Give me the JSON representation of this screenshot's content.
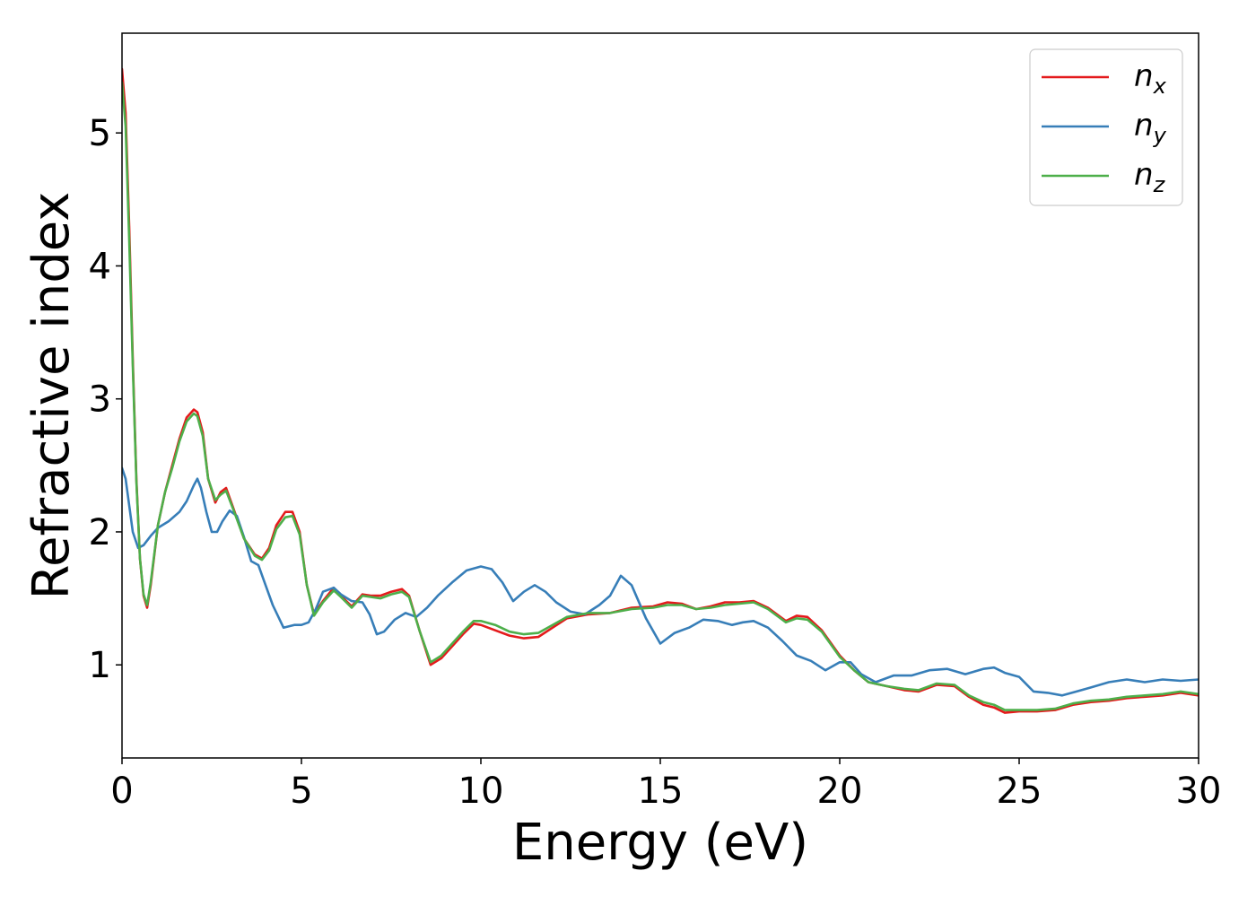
{
  "chart_data": {
    "type": "line",
    "xlabel": "Energy (eV)",
    "ylabel": "Refractive index",
    "xlim": [
      0,
      30
    ],
    "ylim": [
      0.3,
      5.75
    ],
    "xticks": [
      0,
      5,
      10,
      15,
      20,
      25,
      30
    ],
    "yticks": [
      1,
      2,
      3,
      4,
      5
    ],
    "grid": false,
    "legend_position": "top-right",
    "series": [
      {
        "name": "n_x",
        "label_base": "n",
        "label_sub": "x",
        "color": "#e41a1c",
        "x": [
          0.0,
          0.1,
          0.2,
          0.3,
          0.4,
          0.5,
          0.6,
          0.7,
          0.8,
          1.0,
          1.2,
          1.4,
          1.6,
          1.8,
          2.0,
          2.1,
          2.25,
          2.4,
          2.6,
          2.75,
          2.9,
          3.1,
          3.4,
          3.7,
          3.9,
          4.1,
          4.3,
          4.55,
          4.75,
          4.95,
          5.15,
          5.35,
          5.6,
          5.9,
          6.1,
          6.4,
          6.7,
          6.95,
          7.2,
          7.5,
          7.8,
          8.0,
          8.3,
          8.6,
          8.9,
          9.2,
          9.5,
          9.8,
          10.0,
          10.4,
          10.8,
          11.2,
          11.6,
          12.0,
          12.4,
          13.0,
          13.6,
          14.2,
          14.8,
          15.2,
          15.6,
          16.0,
          16.4,
          16.8,
          17.2,
          17.6,
          18.0,
          18.5,
          18.8,
          19.1,
          19.5,
          20.0,
          20.4,
          20.8,
          21.3,
          21.8,
          22.2,
          22.7,
          23.2,
          23.6,
          24.0,
          24.3,
          24.6,
          25.0,
          25.5,
          26.0,
          26.5,
          27.0,
          27.5,
          28.0,
          28.5,
          29.0,
          29.5,
          30.0
        ],
        "y": [
          5.48,
          5.15,
          4.3,
          3.3,
          2.4,
          1.8,
          1.52,
          1.43,
          1.6,
          2.05,
          2.3,
          2.5,
          2.7,
          2.86,
          2.92,
          2.9,
          2.75,
          2.4,
          2.22,
          2.3,
          2.33,
          2.18,
          1.95,
          1.83,
          1.8,
          1.88,
          2.05,
          2.15,
          2.15,
          2.0,
          1.6,
          1.38,
          1.48,
          1.58,
          1.52,
          1.44,
          1.53,
          1.52,
          1.52,
          1.55,
          1.57,
          1.52,
          1.25,
          1.0,
          1.05,
          1.14,
          1.23,
          1.31,
          1.3,
          1.26,
          1.22,
          1.2,
          1.21,
          1.28,
          1.35,
          1.38,
          1.39,
          1.43,
          1.44,
          1.47,
          1.46,
          1.42,
          1.44,
          1.47,
          1.47,
          1.48,
          1.43,
          1.33,
          1.37,
          1.36,
          1.26,
          1.07,
          0.96,
          0.87,
          0.84,
          0.81,
          0.8,
          0.85,
          0.84,
          0.76,
          0.7,
          0.68,
          0.64,
          0.65,
          0.65,
          0.66,
          0.7,
          0.72,
          0.73,
          0.75,
          0.76,
          0.77,
          0.79,
          0.77
        ]
      },
      {
        "name": "n_y",
        "label_base": "n",
        "label_sub": "y",
        "color": "#377eb8",
        "x": [
          0.0,
          0.1,
          0.2,
          0.3,
          0.45,
          0.6,
          0.8,
          1.0,
          1.3,
          1.6,
          1.8,
          2.0,
          2.1,
          2.2,
          2.35,
          2.5,
          2.65,
          2.8,
          3.0,
          3.2,
          3.4,
          3.6,
          3.8,
          4.0,
          4.2,
          4.5,
          4.8,
          5.0,
          5.2,
          5.4,
          5.6,
          5.9,
          6.1,
          6.4,
          6.7,
          6.9,
          7.1,
          7.3,
          7.6,
          7.9,
          8.2,
          8.5,
          8.8,
          9.2,
          9.6,
          10.0,
          10.3,
          10.6,
          10.9,
          11.2,
          11.5,
          11.8,
          12.1,
          12.5,
          12.9,
          13.3,
          13.6,
          13.9,
          14.2,
          14.6,
          15.0,
          15.4,
          15.8,
          16.2,
          16.6,
          17.0,
          17.3,
          17.6,
          18.0,
          18.4,
          18.8,
          19.2,
          19.6,
          20.0,
          20.3,
          20.6,
          21.0,
          21.5,
          22.0,
          22.5,
          23.0,
          23.5,
          24.0,
          24.3,
          24.6,
          25.0,
          25.4,
          25.8,
          26.2,
          26.6,
          27.0,
          27.5,
          28.0,
          28.5,
          29.0,
          29.5,
          30.0
        ],
        "y": [
          2.48,
          2.4,
          2.2,
          2.0,
          1.88,
          1.9,
          1.97,
          2.03,
          2.08,
          2.15,
          2.23,
          2.35,
          2.4,
          2.33,
          2.15,
          2.0,
          2.0,
          2.08,
          2.16,
          2.12,
          1.96,
          1.78,
          1.75,
          1.6,
          1.45,
          1.28,
          1.3,
          1.3,
          1.32,
          1.42,
          1.55,
          1.58,
          1.53,
          1.48,
          1.47,
          1.38,
          1.23,
          1.25,
          1.34,
          1.39,
          1.36,
          1.43,
          1.52,
          1.62,
          1.71,
          1.74,
          1.72,
          1.62,
          1.48,
          1.55,
          1.6,
          1.55,
          1.47,
          1.4,
          1.38,
          1.45,
          1.52,
          1.67,
          1.6,
          1.35,
          1.16,
          1.24,
          1.28,
          1.34,
          1.33,
          1.3,
          1.32,
          1.33,
          1.28,
          1.18,
          1.07,
          1.03,
          0.96,
          1.02,
          1.02,
          0.93,
          0.87,
          0.92,
          0.92,
          0.96,
          0.97,
          0.93,
          0.97,
          0.98,
          0.94,
          0.91,
          0.8,
          0.79,
          0.77,
          0.8,
          0.83,
          0.87,
          0.89,
          0.87,
          0.89,
          0.88,
          0.89
        ]
      },
      {
        "name": "n_z",
        "label_base": "n",
        "label_sub": "z",
        "color": "#4daf4a",
        "x": [
          0.0,
          0.1,
          0.2,
          0.3,
          0.4,
          0.5,
          0.6,
          0.7,
          0.8,
          1.0,
          1.2,
          1.4,
          1.6,
          1.8,
          2.0,
          2.1,
          2.25,
          2.4,
          2.6,
          2.75,
          2.9,
          3.1,
          3.4,
          3.7,
          3.9,
          4.1,
          4.3,
          4.55,
          4.75,
          4.95,
          5.15,
          5.35,
          5.6,
          5.9,
          6.1,
          6.4,
          6.7,
          6.95,
          7.2,
          7.5,
          7.8,
          8.0,
          8.3,
          8.6,
          8.9,
          9.2,
          9.5,
          9.8,
          10.0,
          10.4,
          10.8,
          11.2,
          11.6,
          12.0,
          12.4,
          13.0,
          13.6,
          14.2,
          14.8,
          15.2,
          15.6,
          16.0,
          16.4,
          16.8,
          17.2,
          17.6,
          18.0,
          18.5,
          18.8,
          19.1,
          19.5,
          20.0,
          20.4,
          20.8,
          21.3,
          21.8,
          22.2,
          22.7,
          23.2,
          23.6,
          24.0,
          24.3,
          24.6,
          25.0,
          25.5,
          26.0,
          26.5,
          27.0,
          27.5,
          28.0,
          28.5,
          29.0,
          29.5,
          30.0
        ],
        "y": [
          5.38,
          5.05,
          4.2,
          3.25,
          2.38,
          1.8,
          1.53,
          1.45,
          1.62,
          2.05,
          2.3,
          2.48,
          2.68,
          2.83,
          2.89,
          2.87,
          2.72,
          2.4,
          2.24,
          2.28,
          2.31,
          2.17,
          1.95,
          1.82,
          1.79,
          1.86,
          2.02,
          2.11,
          2.12,
          1.98,
          1.6,
          1.37,
          1.47,
          1.56,
          1.51,
          1.43,
          1.52,
          1.51,
          1.5,
          1.53,
          1.55,
          1.51,
          1.25,
          1.02,
          1.07,
          1.16,
          1.25,
          1.33,
          1.33,
          1.3,
          1.25,
          1.23,
          1.24,
          1.3,
          1.36,
          1.39,
          1.39,
          1.42,
          1.43,
          1.45,
          1.45,
          1.42,
          1.43,
          1.45,
          1.46,
          1.47,
          1.42,
          1.32,
          1.35,
          1.34,
          1.25,
          1.06,
          0.96,
          0.87,
          0.84,
          0.82,
          0.81,
          0.86,
          0.85,
          0.77,
          0.72,
          0.7,
          0.66,
          0.66,
          0.66,
          0.67,
          0.71,
          0.73,
          0.74,
          0.76,
          0.77,
          0.78,
          0.8,
          0.78
        ]
      }
    ]
  }
}
